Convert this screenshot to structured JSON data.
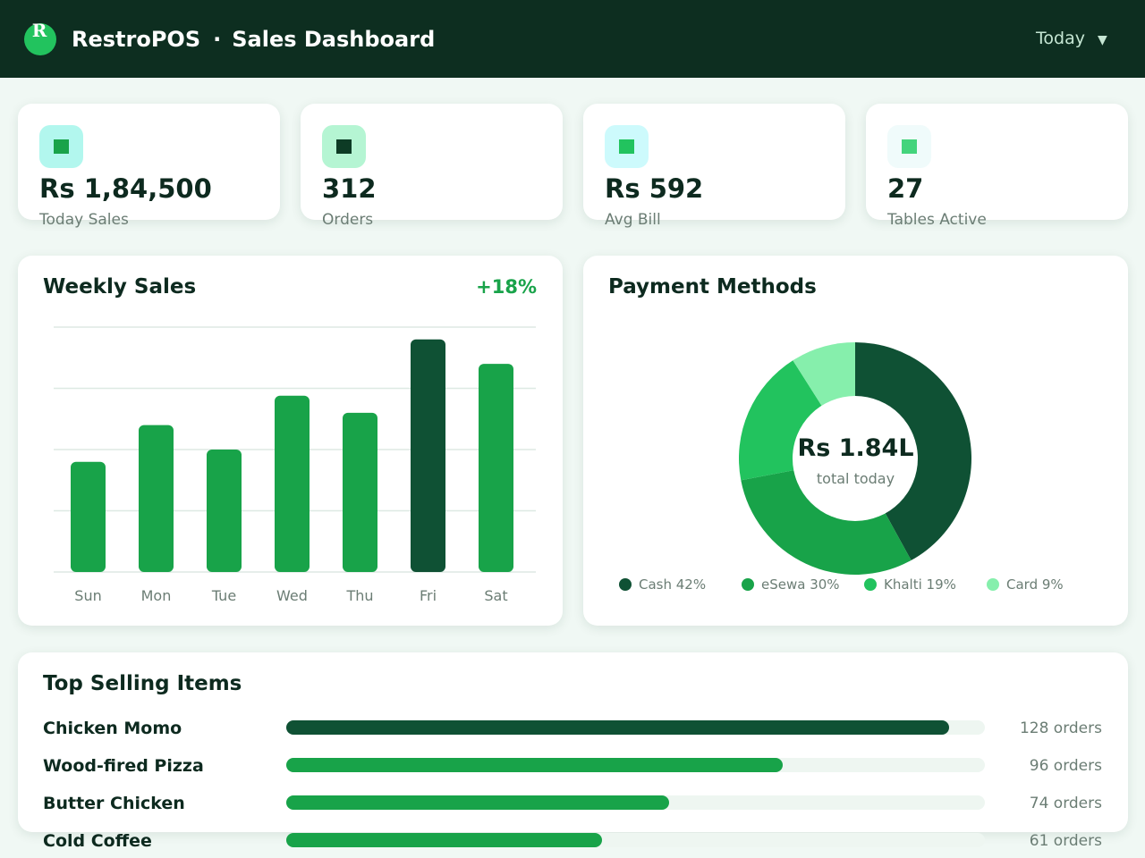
{
  "header": {
    "logo_letter": "R",
    "app_name": "RestroPOS",
    "separator": "·",
    "page_title": "Sales Dashboard",
    "date_range": "Today",
    "date_caret": "▼"
  },
  "stats": [
    {
      "value": "Rs 1,84,500",
      "label": "Today Sales",
      "icon": "sales-icon",
      "icon_bg": "#b2f7ee",
      "icon_fg": "#19a34a"
    },
    {
      "value": "312",
      "label": "Orders",
      "icon": "orders-icon",
      "icon_bg": "#b5f5d3",
      "icon_fg": "#0d3b25"
    },
    {
      "value": "Rs 592",
      "label": "Avg Bill",
      "icon": "bill-icon",
      "icon_bg": "#cdfafc",
      "icon_fg": "#22c35e"
    },
    {
      "value": "27",
      "label": "Tables Active",
      "icon": "tables-icon",
      "icon_bg": "#f0fbfb",
      "icon_fg": "#44d47c"
    }
  ],
  "weekly": {
    "title": "Weekly Sales",
    "growth": "+18%"
  },
  "payments": {
    "title": "Payment Methods",
    "center_value": "Rs 1.84L",
    "center_label": "total today",
    "legend": [
      {
        "label": "Cash 42%",
        "color": "#0f5134"
      },
      {
        "label": "eSewa 30%",
        "color": "#18a349"
      },
      {
        "label": "Khalti 19%",
        "color": "#22c35e"
      },
      {
        "label": "Card 9%",
        "color": "#86efac"
      }
    ]
  },
  "top_items": {
    "title": "Top Selling Items",
    "items": [
      {
        "name": "Chicken Momo",
        "count_label": "128 orders",
        "orders": 128,
        "color": "#0f5134"
      },
      {
        "name": "Wood-fired Pizza",
        "count_label": "96 orders",
        "orders": 96,
        "color": "#18a349"
      },
      {
        "name": "Butter Chicken",
        "count_label": "74 orders",
        "orders": 74,
        "color": "#18a349"
      },
      {
        "name": "Cold Coffee",
        "count_label": "61 orders",
        "orders": 61,
        "color": "#18a349"
      }
    ]
  },
  "colors": {
    "header_bg": "#0d2e20",
    "accent": "#22c35e",
    "bar": "#18a349",
    "bar_highlight": "#0f5134"
  },
  "chart_data": [
    {
      "type": "bar",
      "title": "Weekly Sales",
      "categories": [
        "Sun",
        "Mon",
        "Tue",
        "Wed",
        "Thu",
        "Fri",
        "Sat"
      ],
      "values": [
        45,
        60,
        50,
        72,
        65,
        95,
        85
      ],
      "ylim": [
        0,
        100
      ],
      "highlight": "Fri",
      "grid": true
    },
    {
      "type": "pie",
      "title": "Payment Methods",
      "donut": true,
      "categories": [
        "Cash",
        "eSewa",
        "Khalti",
        "Card"
      ],
      "values": [
        42,
        30,
        19,
        9
      ],
      "legend": "bottom"
    }
  ]
}
